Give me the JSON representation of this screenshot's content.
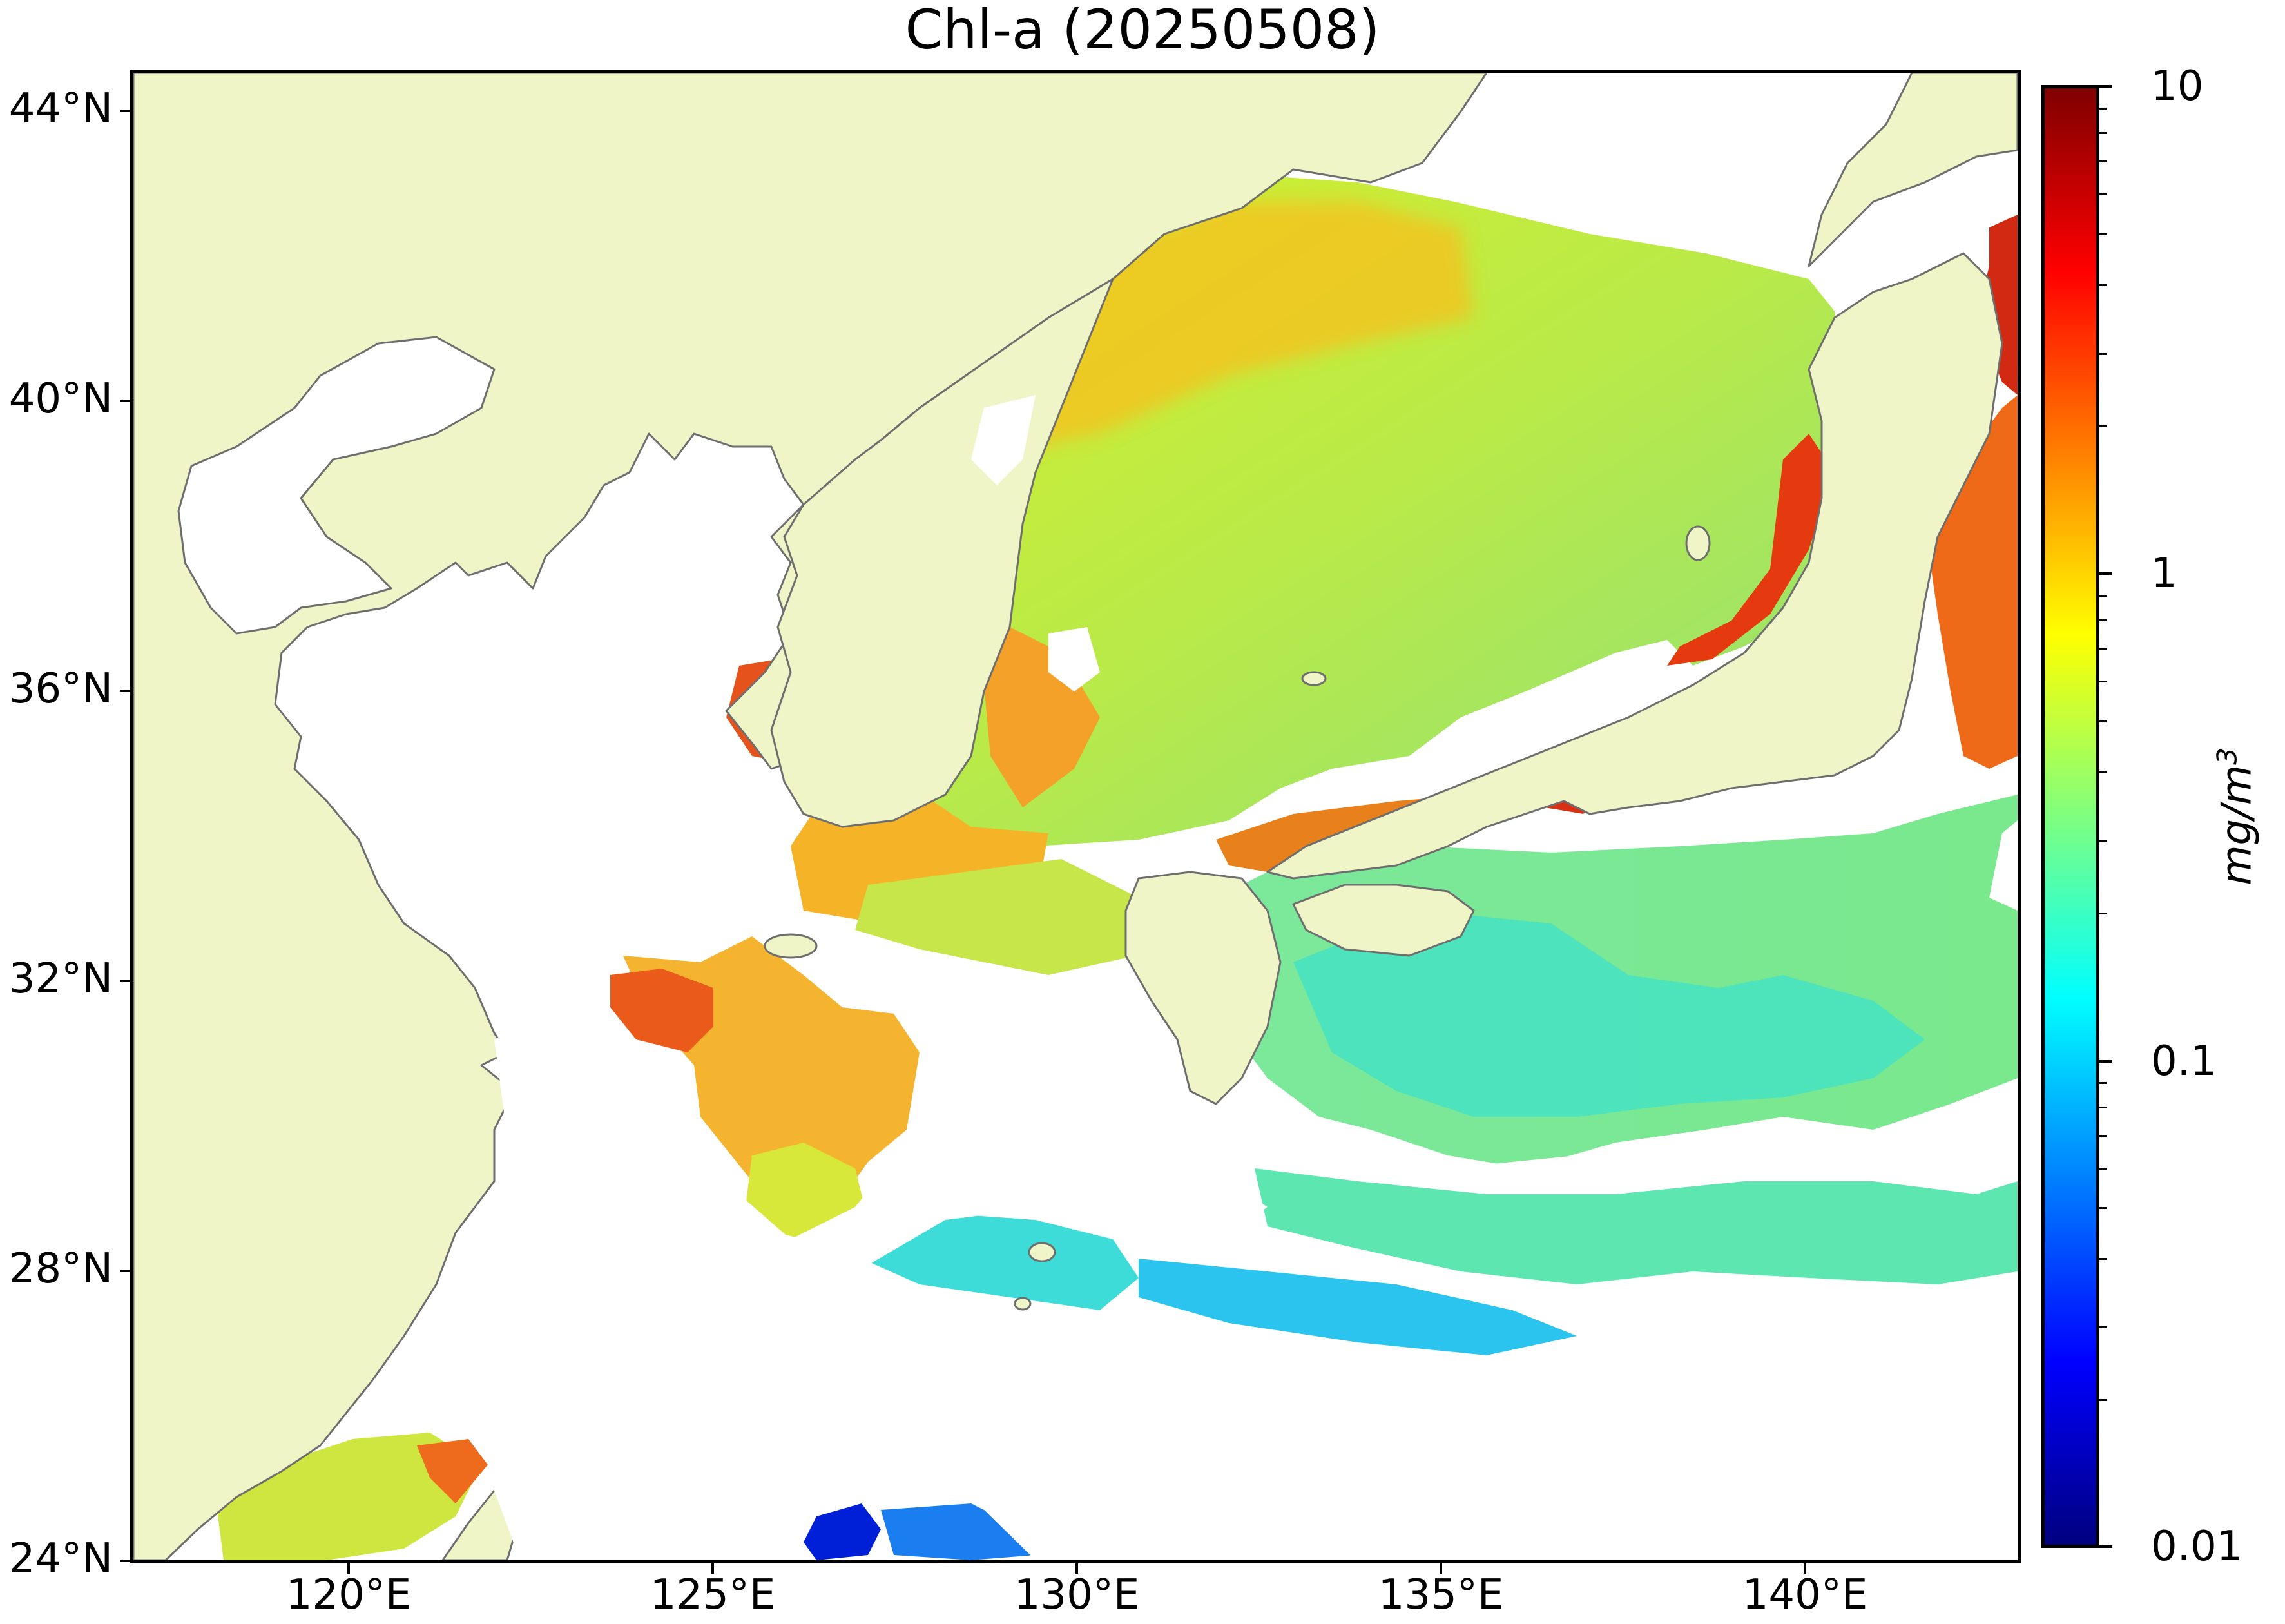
{
  "title": "Chl-a (20250508)",
  "map": {
    "lon_range": [
      117,
      143
    ],
    "lat_range": [
      24,
      44.5
    ],
    "land_color": "#f0f5c8",
    "coast_color": "#6e6e6e",
    "no_data_color": "#ffffff"
  },
  "y_ticks": [
    "44°N",
    "40°N",
    "36°N",
    "32°N",
    "28°N",
    "24°N"
  ],
  "y_tick_values": [
    44,
    40,
    36,
    32,
    28,
    24
  ],
  "x_ticks": [
    "120°E",
    "125°E",
    "130°E",
    "135°E",
    "140°E"
  ],
  "x_tick_values": [
    120,
    125,
    130,
    135,
    140
  ],
  "colorbar": {
    "scale": "log",
    "range": [
      0.01,
      10
    ],
    "colormap": "jet",
    "colors": [
      "#00007f",
      "#0000ff",
      "#007fff",
      "#00ffff",
      "#7fff7f",
      "#ffff00",
      "#ff7f00",
      "#ff0000",
      "#7f0000"
    ],
    "tick_labels": [
      "10",
      "1",
      "0.1",
      "0.01"
    ],
    "tick_values": [
      10,
      1,
      0.1,
      0.01
    ],
    "unit_base": "mg/m",
    "unit_exp": "3"
  }
}
